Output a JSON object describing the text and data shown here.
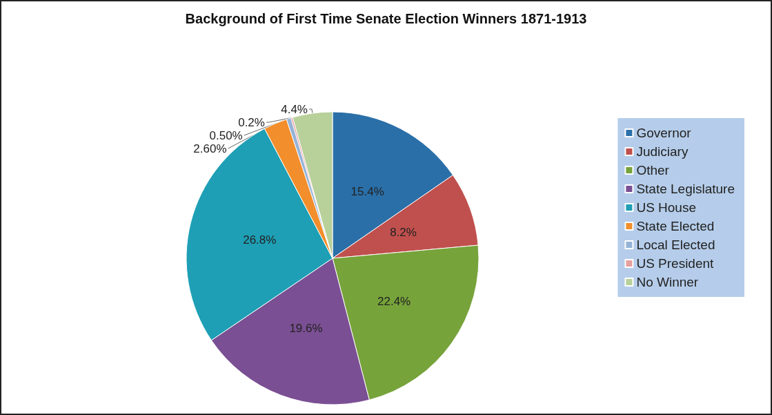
{
  "chart_data": {
    "type": "pie",
    "title": "Background of First Time Senate Election Winners 1871-1913",
    "categories": [
      "Governor",
      "Judiciary",
      "Other",
      "State Legislature",
      "US House",
      "State Elected",
      "Local Elected",
      "US President",
      "No Winner"
    ],
    "values": [
      15.4,
      8.2,
      22.4,
      19.6,
      26.8,
      2.6,
      0.5,
      0.2,
      4.4
    ],
    "value_labels": [
      "15.4%",
      "8.2%",
      "22.4%",
      "19.6%",
      "26.8%",
      "2.60%",
      "0.50%",
      "0.2%",
      "4.4%"
    ],
    "colors": [
      "#2a6fa8",
      "#c0504d",
      "#77a33b",
      "#7a4f93",
      "#1e9fb5",
      "#f28e2b",
      "#95b3d7",
      "#e6a0a0",
      "#b8d09a"
    ],
    "legend": "right"
  }
}
